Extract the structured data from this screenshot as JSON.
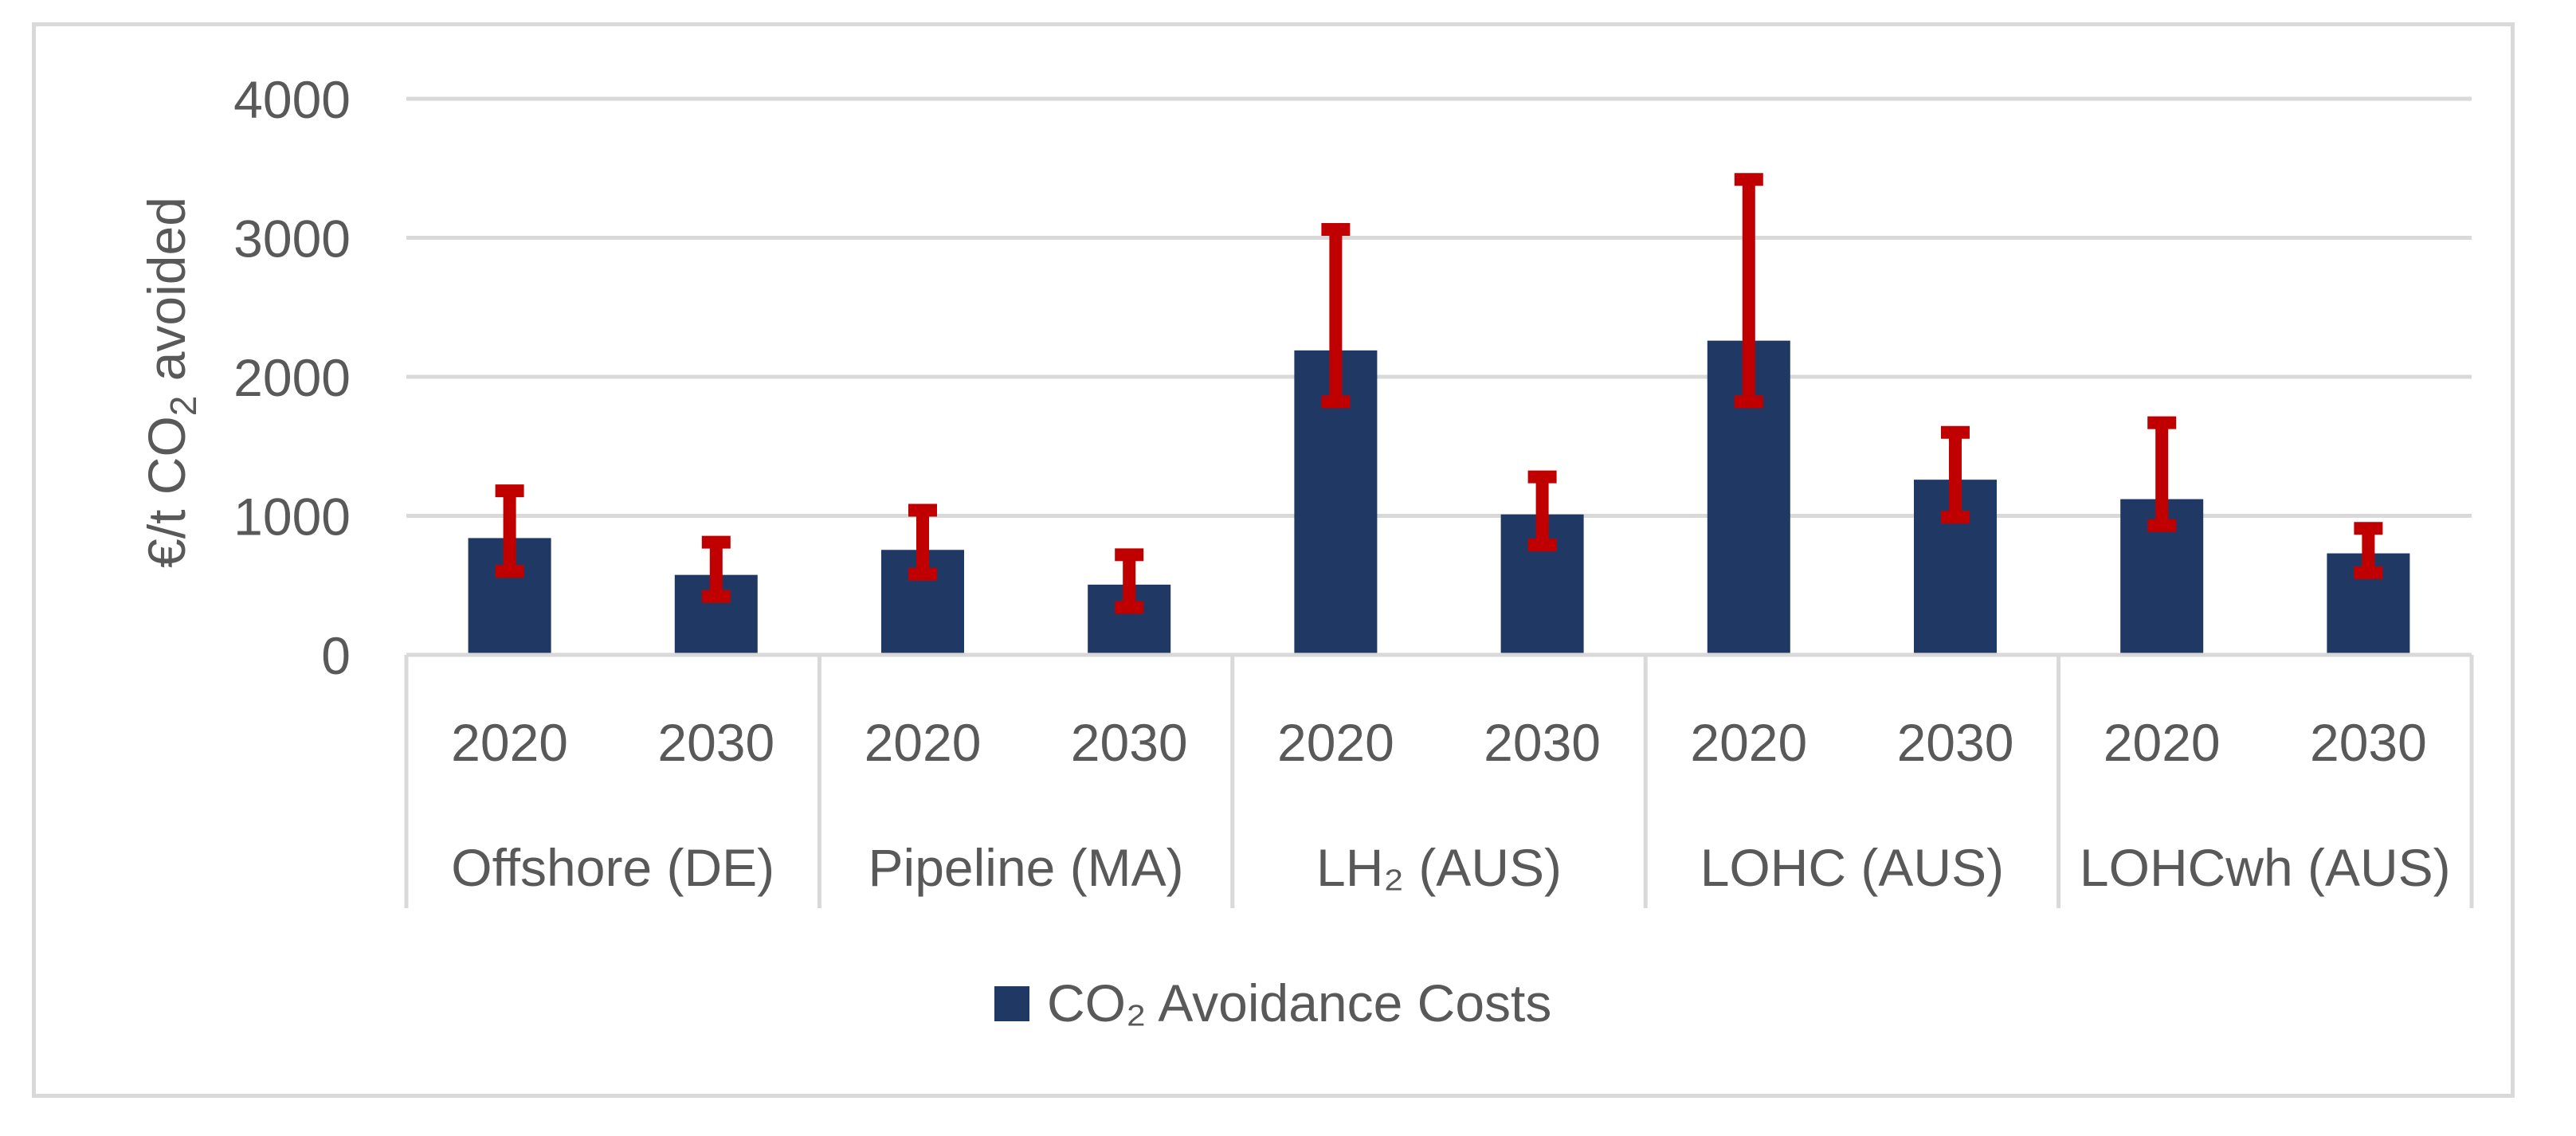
{
  "chart_data": {
    "type": "bar",
    "title": "",
    "xlabel": "",
    "ylabel_parts": [
      "€/t CO",
      "2",
      " avoided"
    ],
    "ylim": [
      0,
      4000
    ],
    "yticks": [
      "0",
      "1000",
      "2000",
      "3000",
      "4000"
    ],
    "grid": true,
    "groups": [
      {
        "label": "Offshore (DE)",
        "years": [
          "2020",
          "2030"
        ]
      },
      {
        "label": "Pipeline (MA)",
        "years": [
          "2020",
          "2030"
        ]
      },
      {
        "label": "LH₂ (AUS)",
        "years": [
          "2020",
          "2030"
        ]
      },
      {
        "label": "LOHC (AUS)",
        "years": [
          "2020",
          "2030"
        ]
      },
      {
        "label": "LOHCwh (AUS)",
        "years": [
          "2020",
          "2030"
        ]
      }
    ],
    "series": [
      {
        "name": "CO₂ Avoidance Costs",
        "values": [
          840,
          575,
          755,
          505,
          2190,
          1010,
          2260,
          1260,
          1120,
          730
        ],
        "error_low": [
          600,
          420,
          580,
          340,
          1820,
          790,
          1820,
          990,
          930,
          590
        ],
        "error_high": [
          1180,
          810,
          1040,
          720,
          3060,
          1280,
          3420,
          1600,
          1670,
          910
        ]
      }
    ],
    "legend_position": "bottom-center",
    "colors": {
      "bar": "#203864",
      "error": "#c00000",
      "grid": "#d9d9d9",
      "text": "#595959"
    }
  }
}
